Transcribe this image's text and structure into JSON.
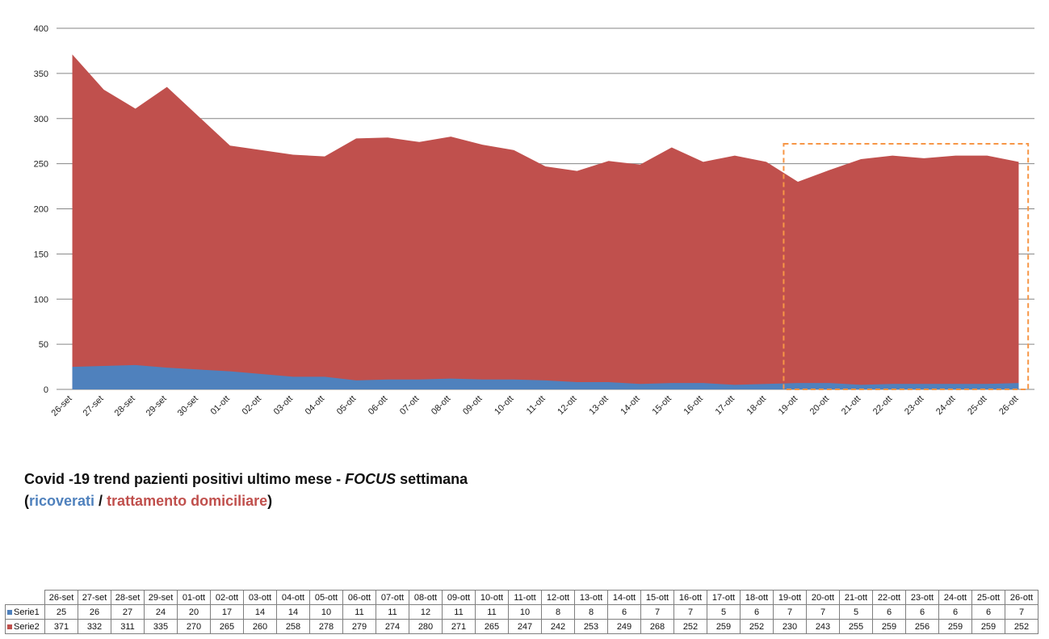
{
  "caption": {
    "line1_pre": "Covid -19 trend pazienti positivi ultimo mese - ",
    "line1_focus": "FOCUS",
    "line1_post": " settimana",
    "open_paren": "(",
    "ricoverati": "ricoverati",
    "slash": " / ",
    "trattamento": "trattamento domiciliare",
    "close_paren": ")"
  },
  "colors": {
    "serie1": "#4f81bd",
    "serie2": "#c0504d",
    "focus_box": "#f79646",
    "grid": "#868686"
  },
  "chart_data": {
    "type": "area",
    "stacked": true,
    "categories": [
      "26-set",
      "27-set",
      "28-set",
      "29-set",
      "30-set",
      "01-ott",
      "02-ott",
      "03-ott",
      "04-ott",
      "05-ott",
      "06-ott",
      "07-ott",
      "08-ott",
      "09-ott",
      "10-ott",
      "11-ott",
      "12-ott",
      "13-ott",
      "14-ott",
      "15-ott",
      "16-ott",
      "17-ott",
      "18-ott",
      "19-ott",
      "20-ott",
      "21-ott",
      "22-ott",
      "23-ott",
      "24-ott",
      "25-ott",
      "26-ott"
    ],
    "series": [
      {
        "name": "Serie1",
        "values": [
          25,
          26,
          27,
          24,
          null,
          20,
          17,
          14,
          14,
          10,
          11,
          11,
          12,
          11,
          11,
          10,
          8,
          8,
          6,
          7,
          7,
          5,
          6,
          7,
          7,
          5,
          6,
          6,
          6,
          6,
          7
        ]
      },
      {
        "name": "Serie2",
        "values": [
          371,
          332,
          311,
          335,
          null,
          270,
          265,
          260,
          258,
          278,
          279,
          274,
          280,
          271,
          265,
          247,
          242,
          253,
          249,
          268,
          252,
          259,
          252,
          230,
          243,
          255,
          259,
          256,
          259,
          259,
          252
        ]
      }
    ],
    "ylim": [
      0,
      400
    ],
    "yticks": [
      0,
      50,
      100,
      150,
      200,
      250,
      300,
      350,
      400
    ],
    "grid": true,
    "highlight": {
      "from": "19-ott",
      "to": "26-ott"
    },
    "table": {
      "columns": [
        "26-set",
        "27-set",
        "28-set",
        "29-set",
        "01-ott",
        "02-ott",
        "03-ott",
        "04-ott",
        "05-ott",
        "06-ott",
        "07-ott",
        "08-ott",
        "09-ott",
        "10-ott",
        "11-ott",
        "12-ott",
        "13-ott",
        "14-ott",
        "15-ott",
        "16-ott",
        "17-ott",
        "18-ott",
        "19-ott",
        "20-ott",
        "21-ott",
        "22-ott",
        "23-ott",
        "24-ott",
        "25-ott",
        "26-ott"
      ],
      "rows": [
        {
          "name": "Serie1",
          "values": [
            25,
            26,
            27,
            24,
            20,
            17,
            14,
            14,
            10,
            11,
            11,
            12,
            11,
            11,
            10,
            8,
            8,
            6,
            7,
            7,
            5,
            6,
            7,
            7,
            5,
            6,
            6,
            6,
            6,
            7
          ]
        },
        {
          "name": "Serie2",
          "values": [
            371,
            332,
            311,
            335,
            270,
            265,
            260,
            258,
            278,
            279,
            274,
            280,
            271,
            265,
            247,
            242,
            253,
            249,
            268,
            252,
            259,
            252,
            230,
            243,
            255,
            259,
            256,
            259,
            259,
            252
          ]
        }
      ]
    }
  }
}
